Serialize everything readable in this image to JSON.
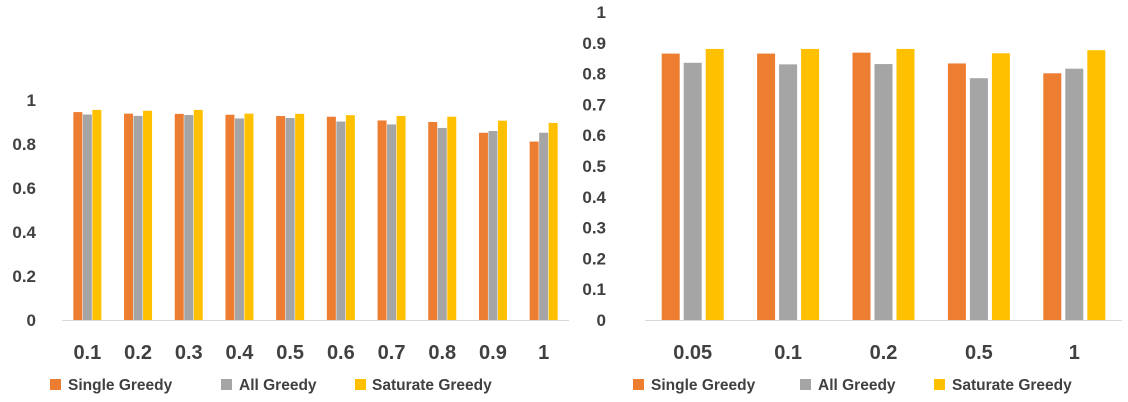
{
  "chart_data": [
    {
      "type": "bar",
      "categories": [
        "0.1",
        "0.2",
        "0.3",
        "0.4",
        "0.5",
        "0.6",
        "0.7",
        "0.8",
        "0.9",
        "1"
      ],
      "series": [
        {
          "name": "Single Greedy",
          "color": "#ED7D31",
          "values": [
            0.945,
            0.938,
            0.937,
            0.933,
            0.927,
            0.924,
            0.907,
            0.9,
            0.851,
            0.811
          ]
        },
        {
          "name": "All Greedy",
          "color": "#A5A5A5",
          "values": [
            0.934,
            0.928,
            0.932,
            0.916,
            0.918,
            0.902,
            0.889,
            0.873,
            0.859,
            0.851
          ]
        },
        {
          "name": "Saturate Greedy",
          "color": "#FFC000",
          "values": [
            0.955,
            0.951,
            0.955,
            0.938,
            0.937,
            0.931,
            0.927,
            0.924,
            0.906,
            0.896
          ]
        }
      ],
      "yticks": [
        "0",
        "0.2",
        "0.4",
        "0.6",
        "0.8",
        "1"
      ],
      "ylim": [
        0,
        1
      ],
      "xlabel": "",
      "ylabel": "",
      "title": "",
      "grid": false,
      "legend_position": "bottom"
    },
    {
      "type": "bar",
      "categories": [
        "0.05",
        "0.1",
        "0.2",
        "0.5",
        "1"
      ],
      "series": [
        {
          "name": "Single Greedy",
          "color": "#ED7D31",
          "values": [
            0.865,
            0.865,
            0.868,
            0.833,
            0.801
          ]
        },
        {
          "name": "All Greedy",
          "color": "#A5A5A5",
          "values": [
            0.835,
            0.83,
            0.831,
            0.785,
            0.816
          ]
        },
        {
          "name": "Saturate Greedy",
          "color": "#FFC000",
          "values": [
            0.88,
            0.88,
            0.88,
            0.866,
            0.876
          ]
        }
      ],
      "yticks": [
        "0",
        "0.1",
        "0.2",
        "0.3",
        "0.4",
        "0.5",
        "0.6",
        "0.7",
        "0.8",
        "0.9",
        "1"
      ],
      "ylim": [
        0,
        1
      ],
      "xlabel": "",
      "ylabel": "",
      "title": "",
      "grid": false,
      "legend_position": "bottom"
    }
  ]
}
